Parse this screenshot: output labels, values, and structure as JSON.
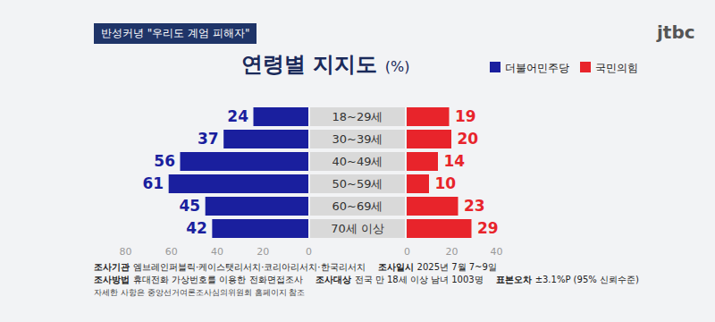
{
  "header": "반성커녕 \"우리도 계엄 피해자\"",
  "logo": "jtbc",
  "chart_data": {
    "type": "bar",
    "orientation": "horizontal",
    "title": "연령별 지지도",
    "title_unit": "(%)",
    "categories": [
      "18~29세",
      "30~39세",
      "40~49세",
      "50~59세",
      "60~69세",
      "70세 이상"
    ],
    "series": [
      {
        "name": "더불어민주당",
        "color": "#1a1f9e",
        "values": [
          24,
          37,
          56,
          61,
          45,
          42
        ],
        "xlim": [
          0,
          80
        ],
        "xticks": [
          0,
          20,
          40,
          60,
          80
        ]
      },
      {
        "name": "국민의힘",
        "color": "#e8242b",
        "values": [
          19,
          20,
          14,
          10,
          23,
          29
        ],
        "xlim": [
          0,
          40
        ],
        "xticks": [
          0,
          20,
          40
        ]
      }
    ],
    "data_labels": true,
    "grid": false,
    "legend": "top-right"
  },
  "notes": [
    [
      {
        "label": "조사기관",
        "text": "엠브레인퍼블릭·케이스탯리서치·코리아리서치·한국리서치"
      },
      {
        "label": "조사일시",
        "text": "2025년 7월 7~9일"
      }
    ],
    [
      {
        "label": "조사방법",
        "text": "휴대전화 가상번호를 이용한 전화면접조사"
      },
      {
        "label": "조사대상",
        "text": "전국 만 18세 이상 남녀 1003명"
      },
      {
        "label": "표본오차",
        "text": "±3.1%P (95% 신뢰수준)"
      }
    ]
  ],
  "footnote": "자세한 사항은 중앙선거여론조사심의위원회 홈페이지 참조"
}
